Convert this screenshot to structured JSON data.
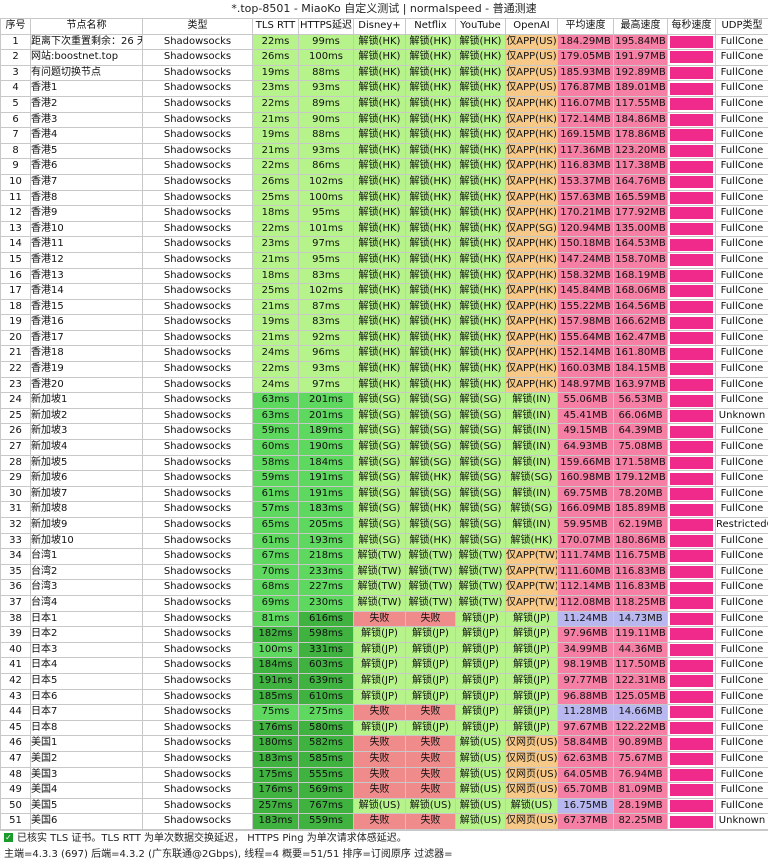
{
  "window": {
    "title": "*.top-8501 - MiaoKo 自定义测试 | normalspeed - 普通测速"
  },
  "columns": [
    "序号",
    "节点名称",
    "类型",
    "TLS RTT",
    "HTTPS延迟",
    "Disney+",
    "Netflix",
    "YouTube",
    "OpenAI",
    "平均速度",
    "最高速度",
    "每秒速度",
    "UDP类型"
  ],
  "colors": {
    "green_light": "#b7f38b",
    "green_med": "#5fd85f",
    "green_dark": "#3fb23f",
    "red_fail": "#f08b8b",
    "orange": "#f7c989",
    "pink_speed": "#f57fa5",
    "blue_speed": "#b9b7ef",
    "magenta": "#ef2a8a"
  },
  "rows": [
    {
      "idx": "1",
      "name": "距离下次重置剩余：26 天",
      "type": "Shadowsocks",
      "tls": "22ms",
      "https": "99ms",
      "disney": "解锁(HK)",
      "netflix": "解锁(HK)",
      "youtube": "解锁(HK)",
      "openai": "仅APP(US)",
      "avg": "184.29MB",
      "max": "195.84MB",
      "udp": "FullCone"
    },
    {
      "idx": "2",
      "name": "网站:boostnet.top",
      "type": "Shadowsocks",
      "tls": "26ms",
      "https": "100ms",
      "disney": "解锁(HK)",
      "netflix": "解锁(HK)",
      "youtube": "解锁(HK)",
      "openai": "仅APP(US)",
      "avg": "179.05MB",
      "max": "191.97MB",
      "udp": "FullCone"
    },
    {
      "idx": "3",
      "name": "有问题切换节点",
      "type": "Shadowsocks",
      "tls": "19ms",
      "https": "88ms",
      "disney": "解锁(HK)",
      "netflix": "解锁(HK)",
      "youtube": "解锁(HK)",
      "openai": "仅APP(US)",
      "avg": "185.93MB",
      "max": "192.89MB",
      "udp": "FullCone"
    },
    {
      "idx": "4",
      "name": "香港1",
      "type": "Shadowsocks",
      "tls": "23ms",
      "https": "93ms",
      "disney": "解锁(HK)",
      "netflix": "解锁(HK)",
      "youtube": "解锁(HK)",
      "openai": "仅APP(US)",
      "avg": "176.87MB",
      "max": "189.01MB",
      "udp": "FullCone"
    },
    {
      "idx": "5",
      "name": "香港2",
      "type": "Shadowsocks",
      "tls": "22ms",
      "https": "89ms",
      "disney": "解锁(HK)",
      "netflix": "解锁(HK)",
      "youtube": "解锁(HK)",
      "openai": "仅APP(HK)",
      "avg": "116.07MB",
      "max": "117.55MB",
      "udp": "FullCone"
    },
    {
      "idx": "6",
      "name": "香港3",
      "type": "Shadowsocks",
      "tls": "21ms",
      "https": "90ms",
      "disney": "解锁(HK)",
      "netflix": "解锁(HK)",
      "youtube": "解锁(HK)",
      "openai": "仅APP(HK)",
      "avg": "172.14MB",
      "max": "184.86MB",
      "udp": "FullCone"
    },
    {
      "idx": "7",
      "name": "香港4",
      "type": "Shadowsocks",
      "tls": "19ms",
      "https": "88ms",
      "disney": "解锁(HK)",
      "netflix": "解锁(HK)",
      "youtube": "解锁(HK)",
      "openai": "仅APP(HK)",
      "avg": "169.15MB",
      "max": "178.86MB",
      "udp": "FullCone"
    },
    {
      "idx": "8",
      "name": "香港5",
      "type": "Shadowsocks",
      "tls": "21ms",
      "https": "93ms",
      "disney": "解锁(HK)",
      "netflix": "解锁(HK)",
      "youtube": "解锁(HK)",
      "openai": "仅APP(HK)",
      "avg": "117.36MB",
      "max": "123.20MB",
      "udp": "FullCone"
    },
    {
      "idx": "9",
      "name": "香港6",
      "type": "Shadowsocks",
      "tls": "22ms",
      "https": "86ms",
      "disney": "解锁(HK)",
      "netflix": "解锁(HK)",
      "youtube": "解锁(HK)",
      "openai": "仅APP(HK)",
      "avg": "116.83MB",
      "max": "117.38MB",
      "udp": "FullCone"
    },
    {
      "idx": "10",
      "name": "香港7",
      "type": "Shadowsocks",
      "tls": "26ms",
      "https": "102ms",
      "disney": "解锁(HK)",
      "netflix": "解锁(HK)",
      "youtube": "解锁(HK)",
      "openai": "仅APP(HK)",
      "avg": "153.37MB",
      "max": "164.76MB",
      "udp": "FullCone"
    },
    {
      "idx": "11",
      "name": "香港8",
      "type": "Shadowsocks",
      "tls": "25ms",
      "https": "100ms",
      "disney": "解锁(HK)",
      "netflix": "解锁(HK)",
      "youtube": "解锁(HK)",
      "openai": "仅APP(HK)",
      "avg": "157.63MB",
      "max": "165.59MB",
      "udp": "FullCone"
    },
    {
      "idx": "12",
      "name": "香港9",
      "type": "Shadowsocks",
      "tls": "18ms",
      "https": "95ms",
      "disney": "解锁(HK)",
      "netflix": "解锁(HK)",
      "youtube": "解锁(HK)",
      "openai": "仅APP(HK)",
      "avg": "170.21MB",
      "max": "177.92MB",
      "udp": "FullCone"
    },
    {
      "idx": "13",
      "name": "香港10",
      "type": "Shadowsocks",
      "tls": "22ms",
      "https": "101ms",
      "disney": "解锁(HK)",
      "netflix": "解锁(HK)",
      "youtube": "解锁(HK)",
      "openai": "仅APP(SG)",
      "avg": "120.94MB",
      "max": "135.00MB",
      "udp": "FullCone"
    },
    {
      "idx": "14",
      "name": "香港11",
      "type": "Shadowsocks",
      "tls": "23ms",
      "https": "97ms",
      "disney": "解锁(HK)",
      "netflix": "解锁(HK)",
      "youtube": "解锁(HK)",
      "openai": "仅APP(HK)",
      "avg": "150.18MB",
      "max": "164.53MB",
      "udp": "FullCone"
    },
    {
      "idx": "15",
      "name": "香港12",
      "type": "Shadowsocks",
      "tls": "21ms",
      "https": "95ms",
      "disney": "解锁(HK)",
      "netflix": "解锁(HK)",
      "youtube": "解锁(HK)",
      "openai": "仅APP(HK)",
      "avg": "147.24MB",
      "max": "158.70MB",
      "udp": "FullCone"
    },
    {
      "idx": "16",
      "name": "香港13",
      "type": "Shadowsocks",
      "tls": "18ms",
      "https": "83ms",
      "disney": "解锁(HK)",
      "netflix": "解锁(HK)",
      "youtube": "解锁(HK)",
      "openai": "仅APP(HK)",
      "avg": "158.32MB",
      "max": "168.19MB",
      "udp": "FullCone"
    },
    {
      "idx": "17",
      "name": "香港14",
      "type": "Shadowsocks",
      "tls": "25ms",
      "https": "102ms",
      "disney": "解锁(HK)",
      "netflix": "解锁(HK)",
      "youtube": "解锁(HK)",
      "openai": "仅APP(HK)",
      "avg": "145.84MB",
      "max": "168.06MB",
      "udp": "FullCone"
    },
    {
      "idx": "18",
      "name": "香港15",
      "type": "Shadowsocks",
      "tls": "21ms",
      "https": "87ms",
      "disney": "解锁(HK)",
      "netflix": "解锁(HK)",
      "youtube": "解锁(HK)",
      "openai": "仅APP(HK)",
      "avg": "155.22MB",
      "max": "164.56MB",
      "udp": "FullCone"
    },
    {
      "idx": "19",
      "name": "香港16",
      "type": "Shadowsocks",
      "tls": "19ms",
      "https": "83ms",
      "disney": "解锁(HK)",
      "netflix": "解锁(HK)",
      "youtube": "解锁(HK)",
      "openai": "仅APP(HK)",
      "avg": "157.98MB",
      "max": "166.62MB",
      "udp": "FullCone"
    },
    {
      "idx": "20",
      "name": "香港17",
      "type": "Shadowsocks",
      "tls": "21ms",
      "https": "92ms",
      "disney": "解锁(HK)",
      "netflix": "解锁(HK)",
      "youtube": "解锁(HK)",
      "openai": "仅APP(HK)",
      "avg": "155.64MB",
      "max": "162.47MB",
      "udp": "FullCone"
    },
    {
      "idx": "21",
      "name": "香港18",
      "type": "Shadowsocks",
      "tls": "24ms",
      "https": "96ms",
      "disney": "解锁(HK)",
      "netflix": "解锁(HK)",
      "youtube": "解锁(HK)",
      "openai": "仅APP(HK)",
      "avg": "152.14MB",
      "max": "161.80MB",
      "udp": "FullCone"
    },
    {
      "idx": "22",
      "name": "香港19",
      "type": "Shadowsocks",
      "tls": "22ms",
      "https": "93ms",
      "disney": "解锁(HK)",
      "netflix": "解锁(HK)",
      "youtube": "解锁(HK)",
      "openai": "仅APP(HK)",
      "avg": "160.03MB",
      "max": "184.15MB",
      "udp": "FullCone"
    },
    {
      "idx": "23",
      "name": "香港20",
      "type": "Shadowsocks",
      "tls": "24ms",
      "https": "97ms",
      "disney": "解锁(HK)",
      "netflix": "解锁(HK)",
      "youtube": "解锁(HK)",
      "openai": "仅APP(HK)",
      "avg": "148.97MB",
      "max": "163.97MB",
      "udp": "FullCone"
    },
    {
      "idx": "24",
      "name": "新加坡1",
      "type": "Shadowsocks",
      "tls": "63ms",
      "https": "201ms",
      "disney": "解锁(SG)",
      "netflix": "解锁(SG)",
      "youtube": "解锁(SG)",
      "openai": "解锁(IN)",
      "avg": "55.06MB",
      "max": "56.53MB",
      "udp": "FullCone"
    },
    {
      "idx": "25",
      "name": "新加坡2",
      "type": "Shadowsocks",
      "tls": "63ms",
      "https": "201ms",
      "disney": "解锁(SG)",
      "netflix": "解锁(SG)",
      "youtube": "解锁(SG)",
      "openai": "解锁(IN)",
      "avg": "45.41MB",
      "max": "66.06MB",
      "udp": "Unknown"
    },
    {
      "idx": "26",
      "name": "新加坡3",
      "type": "Shadowsocks",
      "tls": "59ms",
      "https": "189ms",
      "disney": "解锁(SG)",
      "netflix": "解锁(SG)",
      "youtube": "解锁(SG)",
      "openai": "解锁(IN)",
      "avg": "49.15MB",
      "max": "64.39MB",
      "udp": "FullCone"
    },
    {
      "idx": "27",
      "name": "新加坡4",
      "type": "Shadowsocks",
      "tls": "60ms",
      "https": "190ms",
      "disney": "解锁(SG)",
      "netflix": "解锁(SG)",
      "youtube": "解锁(SG)",
      "openai": "解锁(IN)",
      "avg": "64.93MB",
      "max": "75.08MB",
      "udp": "FullCone"
    },
    {
      "idx": "28",
      "name": "新加坡5",
      "type": "Shadowsocks",
      "tls": "58ms",
      "https": "184ms",
      "disney": "解锁(SG)",
      "netflix": "解锁(SG)",
      "youtube": "解锁(SG)",
      "openai": "解锁(IN)",
      "avg": "159.66MB",
      "max": "171.58MB",
      "udp": "FullCone"
    },
    {
      "idx": "29",
      "name": "新加坡6",
      "type": "Shadowsocks",
      "tls": "59ms",
      "https": "191ms",
      "disney": "解锁(SG)",
      "netflix": "解锁(HK)",
      "youtube": "解锁(SG)",
      "openai": "解锁(SG)",
      "avg": "160.98MB",
      "max": "179.12MB",
      "udp": "FullCone"
    },
    {
      "idx": "30",
      "name": "新加坡7",
      "type": "Shadowsocks",
      "tls": "61ms",
      "https": "191ms",
      "disney": "解锁(SG)",
      "netflix": "解锁(SG)",
      "youtube": "解锁(SG)",
      "openai": "解锁(IN)",
      "avg": "69.75MB",
      "max": "78.20MB",
      "udp": "FullCone"
    },
    {
      "idx": "31",
      "name": "新加坡8",
      "type": "Shadowsocks",
      "tls": "57ms",
      "https": "183ms",
      "disney": "解锁(SG)",
      "netflix": "解锁(HK)",
      "youtube": "解锁(SG)",
      "openai": "解锁(SG)",
      "avg": "166.09MB",
      "max": "185.89MB",
      "udp": "FullCone"
    },
    {
      "idx": "32",
      "name": "新加坡9",
      "type": "Shadowsocks",
      "tls": "65ms",
      "https": "205ms",
      "disney": "解锁(SG)",
      "netflix": "解锁(SG)",
      "youtube": "解锁(SG)",
      "openai": "解锁(IN)",
      "avg": "59.95MB",
      "max": "62.19MB",
      "udp": "RestrictedCone"
    },
    {
      "idx": "33",
      "name": "新加坡10",
      "type": "Shadowsocks",
      "tls": "61ms",
      "https": "193ms",
      "disney": "解锁(SG)",
      "netflix": "解锁(HK)",
      "youtube": "解锁(SG)",
      "openai": "解锁(HK)",
      "avg": "170.07MB",
      "max": "180.86MB",
      "udp": "FullCone"
    },
    {
      "idx": "34",
      "name": "台湾1",
      "type": "Shadowsocks",
      "tls": "67ms",
      "https": "218ms",
      "disney": "解锁(TW)",
      "netflix": "解锁(TW)",
      "youtube": "解锁(TW)",
      "openai": "仅APP(TW)",
      "avg": "111.74MB",
      "max": "116.75MB",
      "udp": "FullCone"
    },
    {
      "idx": "35",
      "name": "台湾2",
      "type": "Shadowsocks",
      "tls": "70ms",
      "https": "233ms",
      "disney": "解锁(TW)",
      "netflix": "解锁(TW)",
      "youtube": "解锁(TW)",
      "openai": "仅APP(TW)",
      "avg": "111.60MB",
      "max": "116.83MB",
      "udp": "FullCone"
    },
    {
      "idx": "36",
      "name": "台湾3",
      "type": "Shadowsocks",
      "tls": "68ms",
      "https": "227ms",
      "disney": "解锁(TW)",
      "netflix": "解锁(TW)",
      "youtube": "解锁(TW)",
      "openai": "仅APP(TW)",
      "avg": "112.14MB",
      "max": "116.83MB",
      "udp": "FullCone"
    },
    {
      "idx": "37",
      "name": "台湾4",
      "type": "Shadowsocks",
      "tls": "69ms",
      "https": "230ms",
      "disney": "解锁(TW)",
      "netflix": "解锁(TW)",
      "youtube": "解锁(TW)",
      "openai": "仅APP(TW)",
      "avg": "112.08MB",
      "max": "118.25MB",
      "udp": "FullCone"
    },
    {
      "idx": "38",
      "name": "日本1",
      "type": "Shadowsocks",
      "tls": "81ms",
      "https": "616ms",
      "disney": "失败",
      "netflix": "失败",
      "youtube": "解锁(JP)",
      "openai": "解锁(JP)",
      "avg": "11.24MB",
      "max": "14.73MB",
      "udp": "FullCone"
    },
    {
      "idx": "39",
      "name": "日本2",
      "type": "Shadowsocks",
      "tls": "182ms",
      "https": "598ms",
      "disney": "解锁(JP)",
      "netflix": "解锁(JP)",
      "youtube": "解锁(JP)",
      "openai": "解锁(JP)",
      "avg": "97.96MB",
      "max": "119.11MB",
      "udp": "FullCone"
    },
    {
      "idx": "40",
      "name": "日本3",
      "type": "Shadowsocks",
      "tls": "100ms",
      "https": "331ms",
      "disney": "解锁(JP)",
      "netflix": "解锁(JP)",
      "youtube": "解锁(JP)",
      "openai": "解锁(JP)",
      "avg": "34.99MB",
      "max": "44.36MB",
      "udp": "FullCone"
    },
    {
      "idx": "41",
      "name": "日本4",
      "type": "Shadowsocks",
      "tls": "184ms",
      "https": "603ms",
      "disney": "解锁(JP)",
      "netflix": "解锁(JP)",
      "youtube": "解锁(JP)",
      "openai": "解锁(JP)",
      "avg": "98.19MB",
      "max": "117.50MB",
      "udp": "FullCone"
    },
    {
      "idx": "42",
      "name": "日本5",
      "type": "Shadowsocks",
      "tls": "191ms",
      "https": "639ms",
      "disney": "解锁(JP)",
      "netflix": "解锁(JP)",
      "youtube": "解锁(JP)",
      "openai": "解锁(JP)",
      "avg": "97.77MB",
      "max": "122.31MB",
      "udp": "FullCone"
    },
    {
      "idx": "43",
      "name": "日本6",
      "type": "Shadowsocks",
      "tls": "185ms",
      "https": "610ms",
      "disney": "解锁(JP)",
      "netflix": "解锁(JP)",
      "youtube": "解锁(JP)",
      "openai": "解锁(JP)",
      "avg": "96.88MB",
      "max": "125.05MB",
      "udp": "FullCone"
    },
    {
      "idx": "44",
      "name": "日本7",
      "type": "Shadowsocks",
      "tls": "75ms",
      "https": "275ms",
      "disney": "失败",
      "netflix": "失败",
      "youtube": "解锁(JP)",
      "openai": "解锁(JP)",
      "avg": "11.28MB",
      "max": "14.66MB",
      "udp": "FullCone"
    },
    {
      "idx": "45",
      "name": "日本8",
      "type": "Shadowsocks",
      "tls": "176ms",
      "https": "580ms",
      "disney": "解锁(JP)",
      "netflix": "解锁(JP)",
      "youtube": "解锁(JP)",
      "openai": "解锁(JP)",
      "avg": "97.67MB",
      "max": "122.22MB",
      "udp": "FullCone"
    },
    {
      "idx": "46",
      "name": "美国1",
      "type": "Shadowsocks",
      "tls": "180ms",
      "https": "582ms",
      "disney": "失败",
      "netflix": "失败",
      "youtube": "解锁(US)",
      "openai": "仅网页(US)",
      "avg": "58.84MB",
      "max": "90.89MB",
      "udp": "FullCone"
    },
    {
      "idx": "47",
      "name": "美国2",
      "type": "Shadowsocks",
      "tls": "183ms",
      "https": "585ms",
      "disney": "失败",
      "netflix": "失败",
      "youtube": "解锁(US)",
      "openai": "仅网页(US)",
      "avg": "62.63MB",
      "max": "75.67MB",
      "udp": "FullCone"
    },
    {
      "idx": "48",
      "name": "美国3",
      "type": "Shadowsocks",
      "tls": "175ms",
      "https": "555ms",
      "disney": "失败",
      "netflix": "失败",
      "youtube": "解锁(US)",
      "openai": "仅网页(US)",
      "avg": "64.05MB",
      "max": "76.94MB",
      "udp": "FullCone"
    },
    {
      "idx": "49",
      "name": "美国4",
      "type": "Shadowsocks",
      "tls": "176ms",
      "https": "569ms",
      "disney": "失败",
      "netflix": "失败",
      "youtube": "解锁(US)",
      "openai": "仅网页(US)",
      "avg": "65.70MB",
      "max": "81.09MB",
      "udp": "FullCone"
    },
    {
      "idx": "50",
      "name": "美国5",
      "type": "Shadowsocks",
      "tls": "257ms",
      "https": "767ms",
      "disney": "解锁(US)",
      "netflix": "解锁(US)",
      "youtube": "解锁(US)",
      "openai": "解锁(US)",
      "avg": "16.75MB",
      "max": "28.19MB",
      "udp": "FullCone"
    },
    {
      "idx": "51",
      "name": "美国6",
      "type": "Shadowsocks",
      "tls": "183ms",
      "https": "559ms",
      "disney": "失败",
      "netflix": "失败",
      "youtube": "解锁(US)",
      "openai": "仅网页(US)",
      "avg": "67.37MB",
      "max": "82.25MB",
      "udp": "Unknown"
    }
  ],
  "footer": {
    "note": "已核实 TLS 证书。TLS RTT 为单次数据交换延迟， HTTPS Ping 为单次请求体感延迟。",
    "status": "主端=4.3.3 (697) 后端=4.3.2 (广东联通@2Gbps), 线程=4 概要=51/51 排序=订阅原序 过滤器="
  }
}
